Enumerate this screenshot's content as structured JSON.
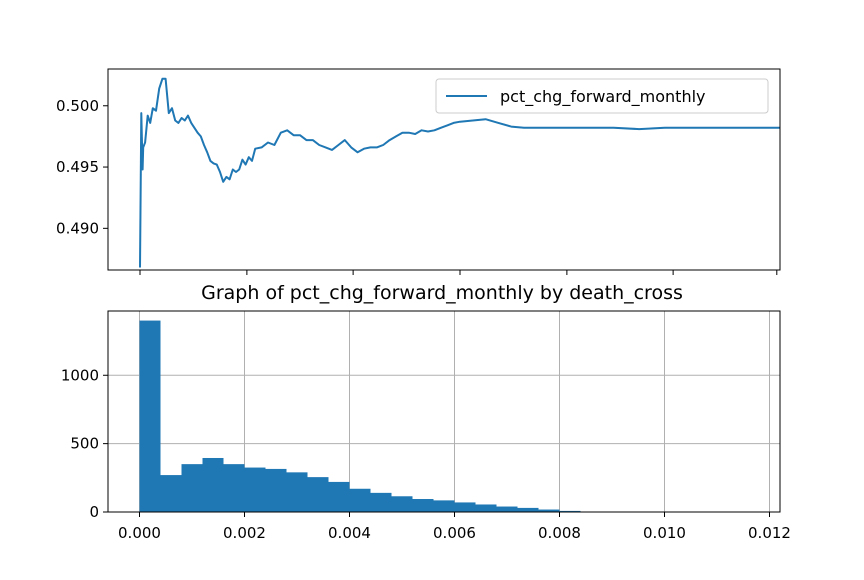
{
  "chart_data": [
    {
      "type": "line",
      "title": "",
      "xlabel": "",
      "ylabel": "",
      "series": [
        {
          "name": "pct_chg_forward_monthly",
          "color": "#1f77b4",
          "x": [
            0,
            0.002,
            0.004,
            0.005,
            0.008,
            0.012,
            0.016,
            0.02,
            0.025,
            0.03,
            0.035,
            0.04,
            0.045,
            0.05,
            0.055,
            0.06,
            0.065,
            0.07,
            0.075,
            0.08,
            0.085,
            0.09,
            0.095,
            0.1,
            0.105,
            0.11,
            0.115,
            0.12,
            0.125,
            0.13,
            0.135,
            0.14,
            0.145,
            0.15,
            0.155,
            0.16,
            0.165,
            0.17,
            0.175,
            0.18,
            0.19,
            0.2,
            0.21,
            0.22,
            0.23,
            0.24,
            0.25,
            0.26,
            0.27,
            0.28,
            0.29,
            0.3,
            0.31,
            0.32,
            0.33,
            0.34,
            0.35,
            0.36,
            0.37,
            0.38,
            0.39,
            0.4,
            0.41,
            0.42,
            0.43,
            0.44,
            0.45,
            0.46,
            0.47,
            0.48,
            0.49,
            0.5,
            0.52,
            0.54,
            0.56,
            0.58,
            0.6,
            0.63,
            0.66,
            0.7,
            0.74,
            0.78,
            0.82,
            0.86,
            0.9,
            0.94,
            0.98,
            1.0
          ],
          "values": [
            0.4868,
            0.4994,
            0.4948,
            0.4966,
            0.497,
            0.4992,
            0.4986,
            0.4998,
            0.4996,
            0.5014,
            0.5022,
            0.5022,
            0.4994,
            0.4998,
            0.4988,
            0.4986,
            0.499,
            0.4988,
            0.4992,
            0.4986,
            0.4982,
            0.4978,
            0.4975,
            0.4968,
            0.4962,
            0.4955,
            0.4953,
            0.4952,
            0.4946,
            0.4938,
            0.4942,
            0.494,
            0.4948,
            0.4946,
            0.4948,
            0.4956,
            0.4952,
            0.4958,
            0.4955,
            0.4965,
            0.4966,
            0.497,
            0.4968,
            0.4978,
            0.498,
            0.4976,
            0.4976,
            0.4972,
            0.4972,
            0.4968,
            0.4966,
            0.4964,
            0.4968,
            0.4972,
            0.4966,
            0.4962,
            0.4965,
            0.4966,
            0.4966,
            0.4968,
            0.4972,
            0.4975,
            0.4978,
            0.4978,
            0.4977,
            0.498,
            0.4979,
            0.498,
            0.4982,
            0.4984,
            0.4986,
            0.4987,
            0.4988,
            0.4989,
            0.4986,
            0.4983,
            0.4982,
            0.4982,
            0.4982,
            0.4982,
            0.4982,
            0.4981,
            0.4982,
            0.4982,
            0.4982,
            0.4982,
            0.4982,
            0.4982
          ]
        }
      ],
      "ylim": [
        0.4866,
        0.503
      ],
      "xlim": [
        -0.05,
        1.0
      ],
      "yticks": [
        0.49,
        0.495,
        0.5
      ],
      "ytick_labels": [
        "0.490",
        "0.495",
        "0.500"
      ],
      "xticks": [
        0,
        0.167,
        0.333,
        0.5,
        0.667,
        0.833,
        0.995
      ],
      "grid": false,
      "legend": {
        "position": "top-right",
        "entries": [
          "pct_chg_forward_monthly"
        ]
      }
    },
    {
      "type": "bar",
      "title": "Graph of pct_chg_forward_monthly by death_cross",
      "xlabel": "",
      "ylabel": "",
      "color": "#1f77b4",
      "bin_edges": [
        0,
        0.0004,
        0.0008,
        0.0012,
        0.0016,
        0.002,
        0.0024,
        0.0028,
        0.0032,
        0.0036,
        0.004,
        0.0044,
        0.0048,
        0.0052,
        0.0056,
        0.006,
        0.0064,
        0.0068,
        0.0072,
        0.0076,
        0.008,
        0.0084,
        0.0088,
        0.0092,
        0.0096,
        0.01,
        0.0104,
        0.0108,
        0.0112,
        0.0116
      ],
      "values": [
        1400,
        270,
        350,
        395,
        350,
        325,
        315,
        290,
        255,
        220,
        170,
        140,
        115,
        95,
        85,
        70,
        55,
        40,
        30,
        18,
        8,
        3,
        2,
        1,
        1,
        0,
        0,
        0,
        1
      ],
      "xlim": [
        -0.0006,
        0.0122
      ],
      "ylim": [
        0,
        1470
      ],
      "xticks": [
        0.0,
        0.002,
        0.004,
        0.006,
        0.008,
        0.01,
        0.012
      ],
      "xtick_labels": [
        "0.000",
        "0.002",
        "0.004",
        "0.006",
        "0.008",
        "0.010",
        "0.012"
      ],
      "yticks": [
        0,
        500,
        1000
      ],
      "ytick_labels": [
        "0",
        "500",
        "1000"
      ],
      "grid": true
    }
  ]
}
